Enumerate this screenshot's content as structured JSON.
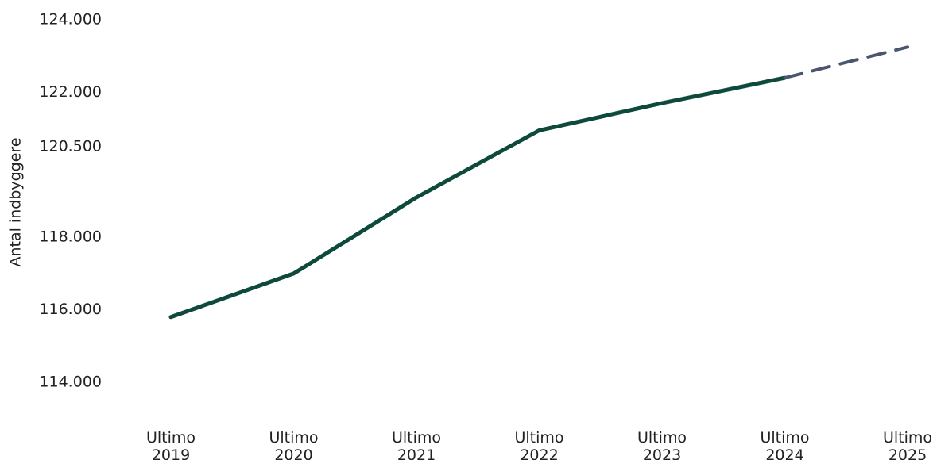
{
  "chart_data": {
    "type": "line",
    "y_label": "Antal indbyggere",
    "categories": [
      "Ultimo 2019",
      "Ultimo 2020",
      "Ultimo 2021",
      "Ultimo 2022",
      "Ultimo 2023",
      "Ultimo 2024",
      "Ultimo 2025"
    ],
    "series": [
      {
        "color": "#0d4a3c",
        "style": "solid",
        "values": [
          115800,
          117000,
          119100,
          120950,
          121700,
          122400,
          null
        ]
      },
      {
        "color": "#4a5670",
        "style": "dashed",
        "values": [
          null,
          null,
          null,
          null,
          null,
          122400,
          123250
        ]
      }
    ],
    "ylim": [
      114000,
      124000
    ],
    "yticks": [
      {
        "value": 124000,
        "label": "124.000"
      },
      {
        "value": 122000,
        "label": "122.000"
      },
      {
        "value": 120500,
        "label": "120.500"
      },
      {
        "value": 118000,
        "label": "118.000"
      },
      {
        "value": 116000,
        "label": "116.000"
      },
      {
        "value": 114000,
        "label": "114.000"
      }
    ],
    "grid": false
  }
}
